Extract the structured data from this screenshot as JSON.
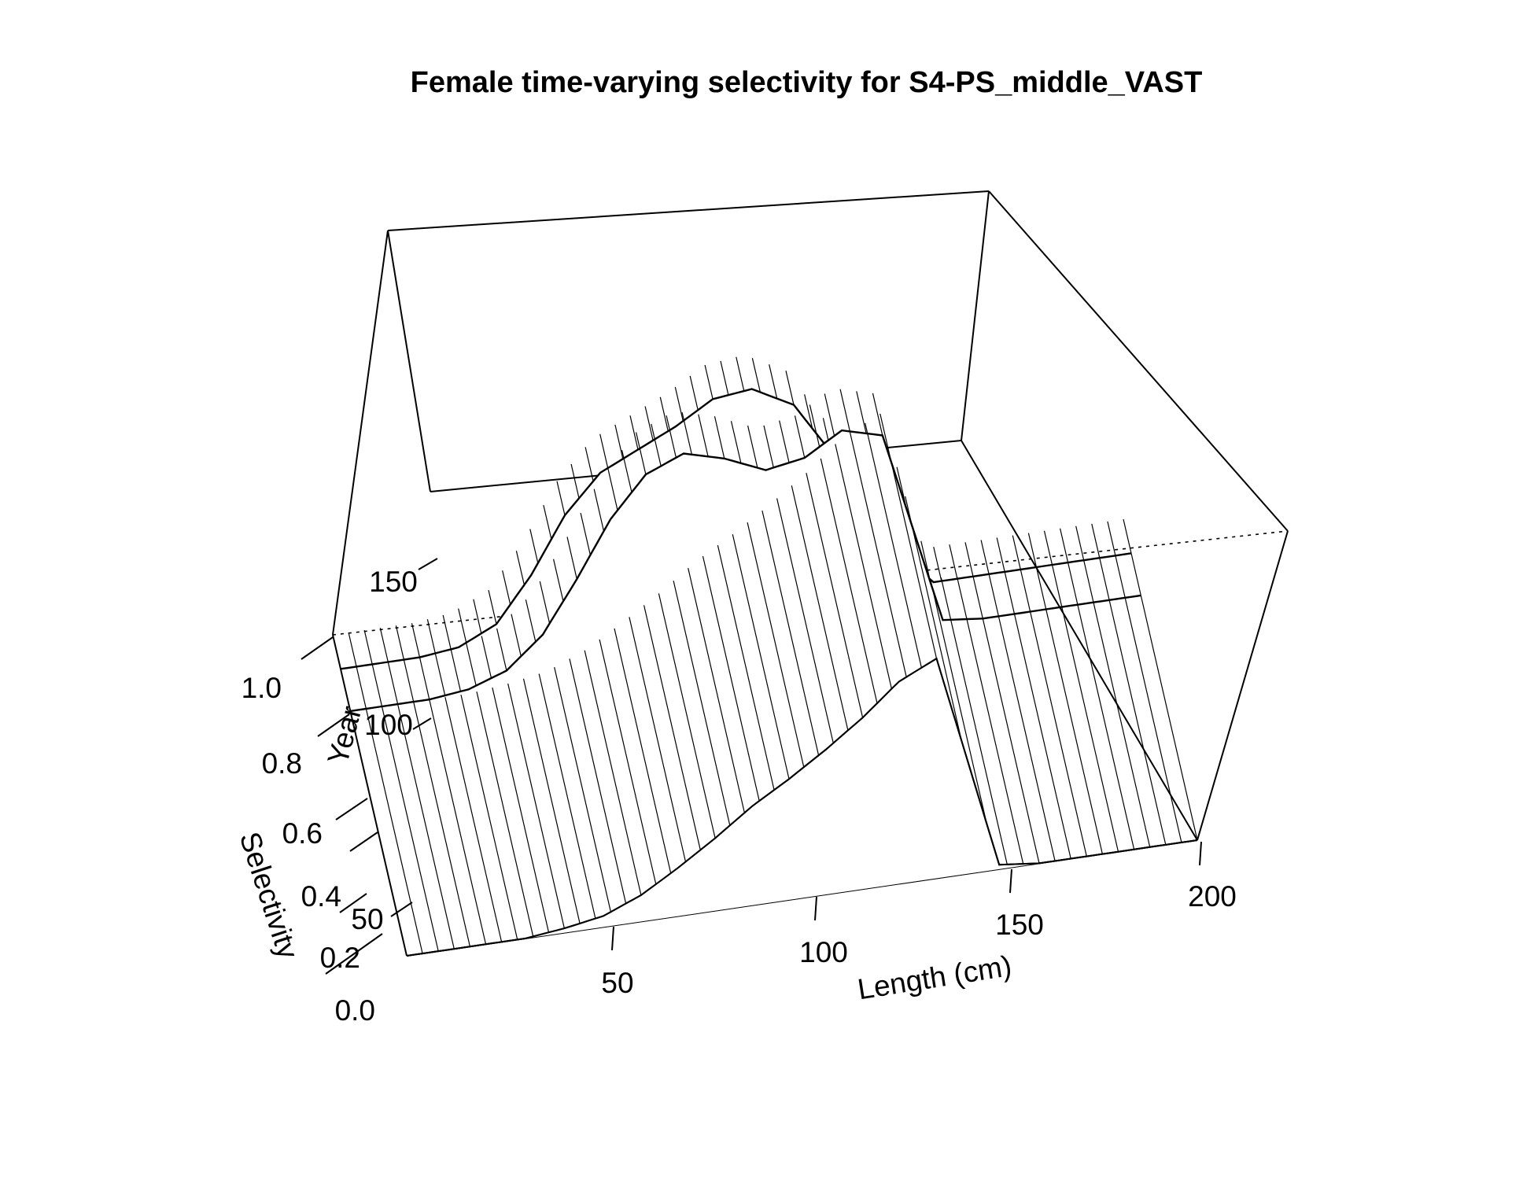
{
  "chart_data": {
    "type": "surface",
    "title": "Female time-varying selectivity for S4-PS_middle_VAST",
    "x_axis": {
      "label": "Length (cm)",
      "range": [
        0,
        200
      ],
      "ticks": [
        "50",
        "100",
        "150",
        "200"
      ]
    },
    "y_axis": {
      "label": "Year",
      "range": [
        0,
        160
      ],
      "ticks": [
        "50",
        "100",
        "150"
      ]
    },
    "z_axis": {
      "label": "Selectivity",
      "range": [
        0,
        1
      ],
      "ticks": [
        "0.0",
        "0.2",
        "0.4",
        "0.6",
        "0.8",
        "1.0"
      ]
    },
    "surface": {
      "x": [
        0,
        10,
        20,
        30,
        40,
        50,
        60,
        70,
        80,
        90,
        100,
        110,
        120,
        130,
        140,
        150,
        160,
        170,
        180,
        190,
        200
      ],
      "year_blocks": [
        {
          "years": [
            0,
            122
          ],
          "selectivity": [
            0.0,
            0.0,
            0.0,
            0.0,
            0.02,
            0.05,
            0.12,
            0.22,
            0.33,
            0.45,
            0.55,
            0.66,
            0.78,
            0.92,
            1.0,
            0.02,
            0.0,
            0.0,
            0.0,
            0.0,
            0.0
          ]
        },
        {
          "years": [
            122,
            143
          ],
          "selectivity": [
            0.0,
            0.0,
            0.0,
            0.02,
            0.08,
            0.22,
            0.45,
            0.7,
            0.88,
            0.95,
            0.9,
            0.82,
            0.85,
            0.95,
            0.9,
            0.02,
            0.0,
            0.0,
            0.0,
            0.0,
            0.0
          ]
        },
        {
          "years": [
            143,
            160
          ],
          "selectivity": [
            0.0,
            0.0,
            0.0,
            0.02,
            0.1,
            0.3,
            0.55,
            0.72,
            0.8,
            0.88,
            0.98,
            1.0,
            0.9,
            0.6,
            0.2,
            0.0,
            0.0,
            0.0,
            0.0,
            0.0,
            0.0
          ]
        }
      ]
    },
    "grid": false,
    "style": "wireframe"
  }
}
